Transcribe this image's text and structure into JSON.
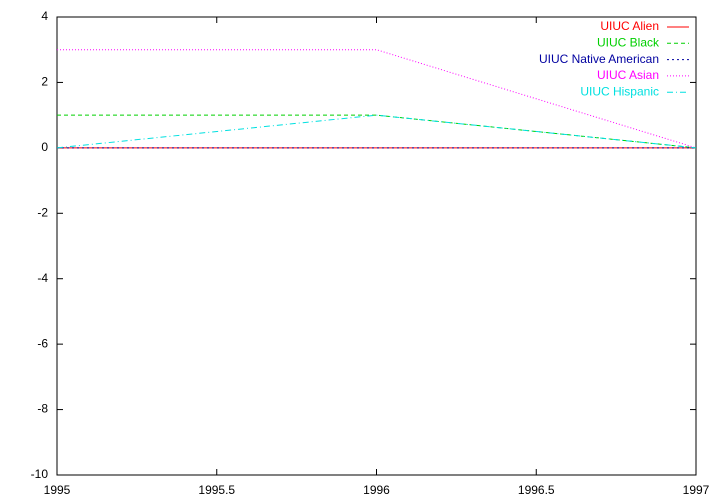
{
  "chart_data": {
    "type": "line",
    "x": [
      1995,
      1996,
      1997
    ],
    "series": [
      {
        "name": "UIUC Alien",
        "color": "#ff0000",
        "values": [
          0,
          0,
          0
        ]
      },
      {
        "name": "UIUC Black",
        "color": "#00d000",
        "values": [
          1,
          1,
          0
        ]
      },
      {
        "name": "UIUC Native American",
        "color": "#0000a0",
        "values": [
          0,
          0,
          0
        ]
      },
      {
        "name": "UIUC Asian",
        "color": "#ff00ff",
        "values": [
          3,
          3,
          0
        ]
      },
      {
        "name": "UIUC Hispanic",
        "color": "#00e0e0",
        "values": [
          0,
          1,
          0
        ]
      }
    ],
    "xlim": [
      1995,
      1997
    ],
    "xticks": [
      1995,
      1995.5,
      1996,
      1996.5,
      1997
    ],
    "ylim": [
      -10,
      4
    ],
    "yticks": [
      -10,
      -8,
      -6,
      -4,
      -2,
      0,
      2,
      4
    ],
    "grid": false,
    "legend": "top-right"
  }
}
